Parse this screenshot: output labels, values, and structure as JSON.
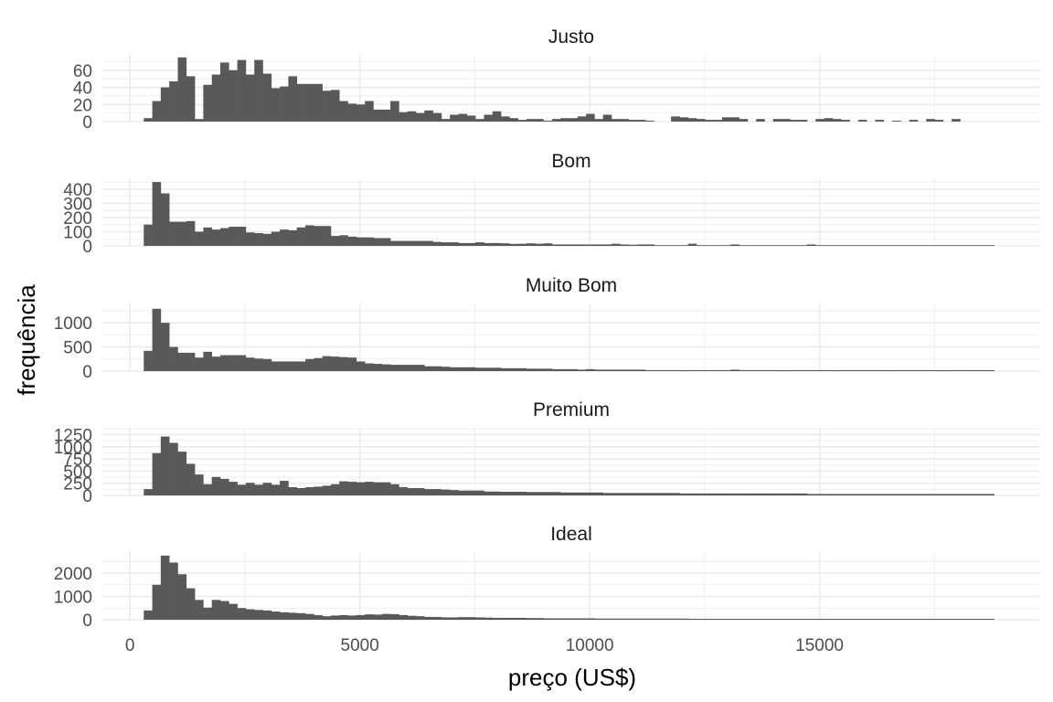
{
  "chart_data": {
    "type": "bar",
    "subtype": "faceted-histogram",
    "xlabel": "preço (US$)",
    "ylabel": "frequência",
    "xlim": [
      -600,
      19800
    ],
    "x_ticks": [
      0,
      5000,
      10000,
      15000
    ],
    "x_tick_labels": [
      "0",
      "5000",
      "10000",
      "15000"
    ],
    "bar_color": "#595959",
    "grid": true,
    "bin_width": 185,
    "bin_start": 300,
    "facets": [
      {
        "name": "Justo",
        "ylim": [
          0,
          78
        ],
        "y_ticks": [
          0,
          20,
          40,
          60
        ],
        "values": [
          4,
          24,
          40,
          47,
          75,
          53,
          3,
          43,
          55,
          69,
          60,
          72,
          55,
          72,
          56,
          39,
          41,
          53,
          44,
          44,
          44,
          36,
          37,
          24,
          21,
          20,
          24,
          14,
          14,
          24,
          11,
          12,
          10,
          13,
          10,
          3,
          8,
          9,
          7,
          3,
          8,
          12,
          6,
          4,
          2,
          3,
          3,
          1,
          3,
          4,
          4,
          6,
          9,
          3,
          8,
          3,
          3,
          2,
          2,
          1,
          0,
          0,
          6,
          5,
          4,
          3,
          2,
          2,
          5,
          5,
          3,
          0,
          3,
          0,
          3,
          3,
          2,
          2,
          0,
          3,
          4,
          3,
          2,
          0,
          2,
          0,
          2,
          0,
          1,
          0,
          2,
          0,
          3,
          2,
          0,
          3,
          0,
          0,
          0,
          0
        ]
      },
      {
        "name": "Bom",
        "ylim": [
          0,
          470
        ],
        "y_ticks": [
          0,
          100,
          200,
          300,
          400
        ],
        "values": [
          150,
          450,
          370,
          170,
          170,
          175,
          100,
          130,
          115,
          125,
          135,
          135,
          95,
          90,
          85,
          100,
          115,
          110,
          130,
          145,
          140,
          140,
          70,
          75,
          65,
          60,
          60,
          55,
          55,
          35,
          35,
          35,
          35,
          35,
          28,
          25,
          25,
          20,
          20,
          25,
          20,
          20,
          18,
          14,
          15,
          18,
          15,
          18,
          10,
          10,
          10,
          10,
          10,
          10,
          10,
          15,
          10,
          8,
          10,
          10,
          5,
          5,
          5,
          5,
          15,
          5,
          5,
          5,
          5,
          10,
          5,
          5,
          5,
          5,
          5,
          5,
          5,
          5,
          10,
          5,
          5,
          5,
          5,
          5,
          5,
          5,
          5,
          5,
          5,
          5,
          5,
          5,
          5,
          5,
          5,
          5,
          5,
          5,
          5,
          5
        ]
      },
      {
        "name": "Muito Bom",
        "ylim": [
          0,
          1400
        ],
        "y_ticks": [
          0,
          500,
          1000
        ],
        "values": [
          420,
          1290,
          1000,
          500,
          380,
          380,
          280,
          400,
          300,
          330,
          330,
          330,
          280,
          260,
          250,
          200,
          200,
          200,
          200,
          250,
          270,
          310,
          300,
          290,
          280,
          200,
          160,
          150,
          140,
          130,
          130,
          130,
          130,
          100,
          100,
          90,
          80,
          80,
          80,
          70,
          70,
          70,
          60,
          60,
          60,
          50,
          50,
          50,
          40,
          40,
          40,
          30,
          40,
          30,
          30,
          30,
          30,
          30,
          30,
          20,
          20,
          20,
          20,
          20,
          20,
          20,
          20,
          20,
          20,
          30,
          20,
          20,
          20,
          20,
          20,
          20,
          20,
          20,
          20,
          20,
          20,
          20,
          20,
          20,
          20,
          20,
          20,
          20,
          20,
          20,
          20,
          20,
          20,
          20,
          20,
          20,
          20,
          20,
          20,
          20
        ]
      },
      {
        "name": "Premium",
        "ylim": [
          0,
          1390
        ],
        "y_ticks": [
          0,
          250,
          500,
          750,
          1000,
          1250
        ],
        "values": [
          130,
          870,
          1210,
          1080,
          900,
          650,
          430,
          230,
          380,
          340,
          280,
          220,
          260,
          220,
          260,
          220,
          300,
          170,
          150,
          170,
          180,
          200,
          230,
          290,
          280,
          270,
          280,
          270,
          270,
          230,
          170,
          150,
          150,
          130,
          130,
          120,
          110,
          100,
          100,
          100,
          80,
          80,
          75,
          75,
          75,
          70,
          70,
          70,
          70,
          60,
          60,
          60,
          60,
          60,
          50,
          50,
          50,
          50,
          50,
          50,
          50,
          50,
          50,
          40,
          40,
          40,
          40,
          40,
          40,
          40,
          40,
          40,
          40,
          40,
          40,
          40,
          40,
          40,
          30,
          30,
          30,
          30,
          30,
          30,
          30,
          30,
          30,
          30,
          30,
          30,
          30,
          30,
          30,
          30,
          30,
          30,
          30,
          30,
          30,
          30
        ]
      },
      {
        "name": "Ideal",
        "ylim": [
          0,
          2900
        ],
        "y_ticks": [
          0,
          1000,
          2000
        ],
        "values": [
          400,
          1500,
          2750,
          2450,
          1950,
          1350,
          850,
          520,
          850,
          800,
          680,
          500,
          450,
          420,
          400,
          350,
          320,
          300,
          280,
          250,
          200,
          150,
          180,
          200,
          180,
          200,
          230,
          220,
          250,
          240,
          200,
          170,
          150,
          120,
          120,
          100,
          100,
          110,
          110,
          100,
          90,
          80,
          80,
          80,
          80,
          70,
          70,
          60,
          60,
          60,
          60,
          60,
          60,
          50,
          50,
          50,
          50,
          50,
          50,
          50,
          50,
          50,
          50,
          50,
          40,
          40,
          40,
          40,
          40,
          40,
          40,
          40,
          40,
          40,
          40,
          40,
          40,
          40,
          40,
          40,
          40,
          40,
          40,
          40,
          40,
          40,
          40,
          40,
          40,
          40,
          40,
          40,
          40,
          40,
          40,
          40,
          40,
          40,
          40,
          40
        ]
      }
    ]
  }
}
